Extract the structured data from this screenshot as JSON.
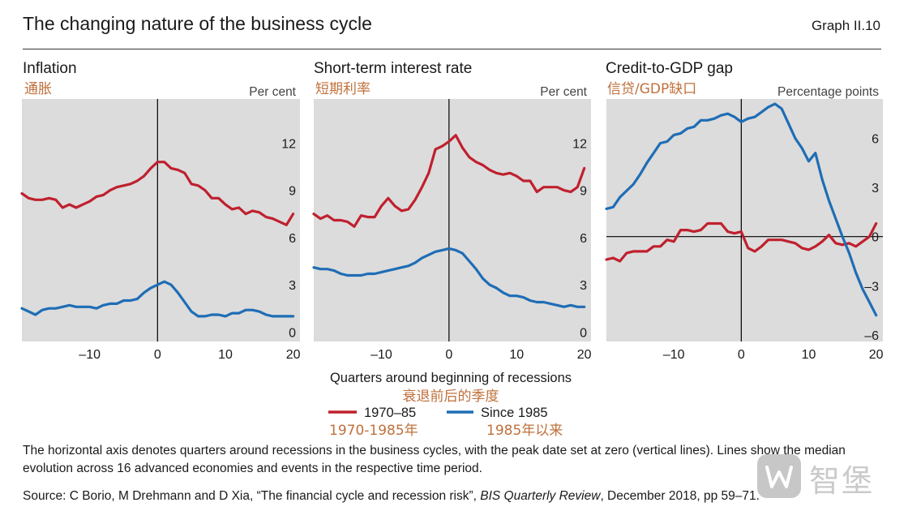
{
  "header": {
    "title": "The changing nature of the business cycle",
    "graph_number": "Graph II.10"
  },
  "x_axis_title": "Quarters around beginning of recessions",
  "x_axis_title_cn": "衰退前后的季度",
  "legend": {
    "items": [
      {
        "label": "1970–85",
        "label_cn": "1970-1985年",
        "color": "#c0202e"
      },
      {
        "label": "Since 1985",
        "label_cn": "1985年以来",
        "color": "#1f6db5"
      }
    ]
  },
  "footnote": "The horizontal axis denotes quarters around recessions in the business cycles, with the peak date set at zero (vertical lines). Lines show the median evolution across 16 advanced economies and events in the respective time period.",
  "source": {
    "prefix": "Source: C Borio, M Drehmann and D Xia, “The financial cycle and recession risk”, ",
    "publication": "BIS Quarterly Review",
    "suffix": ", December 2018, pp 59–71."
  },
  "watermark": {
    "text": "智堡",
    "icon": "zhibao-logo-icon"
  },
  "colors": {
    "red": "#c0202e",
    "blue": "#1f6db5",
    "panel_bg": "#dcdcdc",
    "cn_label": "#c0703c"
  },
  "chart_data": [
    {
      "type": "line",
      "title": "Inflation",
      "title_cn": "通胀",
      "unit": "Per cent",
      "xlim": [
        -20,
        21
      ],
      "ylim": [
        -0.6,
        14.8
      ],
      "xticks": [
        -10,
        0,
        10,
        20
      ],
      "yticks": [
        0,
        3,
        6,
        9,
        12
      ],
      "ytick_labels": [
        "0",
        "3",
        "6",
        "9",
        "12"
      ],
      "zero_line": false,
      "series": [
        {
          "name": "1970–85",
          "color": "#c0202e",
          "x": [
            -20,
            -19,
            -18,
            -17,
            -16,
            -15,
            -14,
            -13,
            -12,
            -11,
            -10,
            -9,
            -8,
            -7,
            -6,
            -5,
            -4,
            -3,
            -2,
            -1,
            0,
            1,
            2,
            3,
            4,
            5,
            6,
            7,
            8,
            9,
            10,
            11,
            12,
            13,
            14,
            15,
            16,
            17,
            18,
            19,
            20
          ],
          "y": [
            8.8,
            8.5,
            8.4,
            8.4,
            8.5,
            8.4,
            7.9,
            8.1,
            7.9,
            8.1,
            8.3,
            8.6,
            8.7,
            9.0,
            9.2,
            9.3,
            9.4,
            9.6,
            9.9,
            10.4,
            10.8,
            10.8,
            10.4,
            10.3,
            10.1,
            9.4,
            9.3,
            9.0,
            8.5,
            8.5,
            8.1,
            7.8,
            7.9,
            7.5,
            7.7,
            7.6,
            7.3,
            7.2,
            7.0,
            6.8,
            7.5
          ]
        },
        {
          "name": "Since 1985",
          "color": "#1f6db5",
          "x": [
            -20,
            -19,
            -18,
            -17,
            -16,
            -15,
            -14,
            -13,
            -12,
            -11,
            -10,
            -9,
            -8,
            -7,
            -6,
            -5,
            -4,
            -3,
            -2,
            -1,
            0,
            1,
            2,
            3,
            4,
            5,
            6,
            7,
            8,
            9,
            10,
            11,
            12,
            13,
            14,
            15,
            16,
            17,
            18,
            19,
            20
          ],
          "y": [
            1.5,
            1.3,
            1.1,
            1.4,
            1.5,
            1.5,
            1.6,
            1.7,
            1.6,
            1.6,
            1.6,
            1.5,
            1.7,
            1.8,
            1.8,
            2.0,
            2.0,
            2.1,
            2.5,
            2.8,
            3.0,
            3.2,
            3.0,
            2.5,
            1.9,
            1.3,
            1.0,
            1.0,
            1.1,
            1.1,
            1.0,
            1.2,
            1.2,
            1.4,
            1.4,
            1.3,
            1.1,
            1.0,
            1.0,
            1.0,
            1.0
          ]
        }
      ]
    },
    {
      "type": "line",
      "title": "Short-term interest rate",
      "title_cn": "短期利率",
      "unit": "Per cent",
      "xlim": [
        -20,
        21
      ],
      "ylim": [
        -0.6,
        14.8
      ],
      "xticks": [
        -10,
        0,
        10,
        20
      ],
      "yticks": [
        0,
        3,
        6,
        9,
        12
      ],
      "ytick_labels": [
        "0",
        "3",
        "6",
        "9",
        "12"
      ],
      "zero_line": false,
      "series": [
        {
          "name": "1970–85",
          "color": "#c0202e",
          "x": [
            -20,
            -19,
            -18,
            -17,
            -16,
            -15,
            -14,
            -13,
            -12,
            -11,
            -10,
            -9,
            -8,
            -7,
            -6,
            -5,
            -4,
            -3,
            -2,
            -1,
            0,
            1,
            2,
            3,
            4,
            5,
            6,
            7,
            8,
            9,
            10,
            11,
            12,
            13,
            14,
            15,
            16,
            17,
            18,
            19,
            20
          ],
          "y": [
            7.5,
            7.2,
            7.4,
            7.1,
            7.1,
            7.0,
            6.7,
            7.4,
            7.3,
            7.3,
            8.0,
            8.5,
            8.0,
            7.7,
            7.8,
            8.4,
            9.2,
            10.1,
            11.6,
            11.8,
            12.1,
            12.5,
            11.7,
            11.1,
            10.8,
            10.6,
            10.3,
            10.1,
            10.0,
            10.1,
            9.9,
            9.6,
            9.6,
            8.9,
            9.2,
            9.2,
            9.2,
            9.0,
            8.9,
            9.2,
            10.4
          ]
        },
        {
          "name": "Since 1985",
          "color": "#1f6db5",
          "x": [
            -20,
            -19,
            -18,
            -17,
            -16,
            -15,
            -14,
            -13,
            -12,
            -11,
            -10,
            -9,
            -8,
            -7,
            -6,
            -5,
            -4,
            -3,
            -2,
            -1,
            0,
            1,
            2,
            3,
            4,
            5,
            6,
            7,
            8,
            9,
            10,
            11,
            12,
            13,
            14,
            15,
            16,
            17,
            18,
            19,
            20
          ],
          "y": [
            4.1,
            4.0,
            4.0,
            3.9,
            3.7,
            3.6,
            3.6,
            3.6,
            3.7,
            3.7,
            3.8,
            3.9,
            4.0,
            4.1,
            4.2,
            4.4,
            4.7,
            4.9,
            5.1,
            5.2,
            5.3,
            5.2,
            5.0,
            4.5,
            4.0,
            3.4,
            3.0,
            2.8,
            2.5,
            2.3,
            2.3,
            2.2,
            2.0,
            1.9,
            1.9,
            1.8,
            1.7,
            1.6,
            1.7,
            1.6,
            1.6
          ]
        }
      ]
    },
    {
      "type": "line",
      "title": "Credit-to-GDP gap",
      "title_cn": "信贷/GDP缺口",
      "unit": "Percentage points",
      "xlim": [
        -20,
        21
      ],
      "ylim": [
        -6.4,
        8.4
      ],
      "xticks": [
        -10,
        0,
        10,
        20
      ],
      "yticks": [
        -6,
        -3,
        0,
        3,
        6
      ],
      "ytick_labels": [
        "–6",
        "–3",
        "0",
        "3",
        "6"
      ],
      "zero_line": true,
      "series": [
        {
          "name": "1970–85",
          "color": "#c0202e",
          "x": [
            -20,
            -19,
            -18,
            -17,
            -16,
            -15,
            -14,
            -13,
            -12,
            -11,
            -10,
            -9,
            -8,
            -7,
            -6,
            -5,
            -4,
            -3,
            -2,
            -1,
            0,
            1,
            2,
            3,
            4,
            5,
            6,
            7,
            8,
            9,
            10,
            11,
            12,
            13,
            14,
            15,
            16,
            17,
            18,
            19,
            20
          ],
          "y": [
            -1.4,
            -1.3,
            -1.5,
            -1.0,
            -0.9,
            -0.9,
            -0.9,
            -0.6,
            -0.6,
            -0.2,
            -0.3,
            0.4,
            0.4,
            0.3,
            0.4,
            0.8,
            0.8,
            0.8,
            0.3,
            0.2,
            0.3,
            -0.7,
            -0.9,
            -0.6,
            -0.2,
            -0.2,
            -0.2,
            -0.3,
            -0.4,
            -0.7,
            -0.8,
            -0.6,
            -0.3,
            0.1,
            -0.4,
            -0.5,
            -0.4,
            -0.6,
            -0.3,
            0.0,
            0.8
          ]
        },
        {
          "name": "Since 1985",
          "color": "#1f6db5",
          "x": [
            -20,
            -19,
            -18,
            -17,
            -16,
            -15,
            -14,
            -13,
            -12,
            -11,
            -10,
            -9,
            -8,
            -7,
            -6,
            -5,
            -4,
            -3,
            -2,
            -1,
            0,
            1,
            2,
            3,
            4,
            5,
            6,
            7,
            8,
            9,
            10,
            11,
            12,
            13,
            14,
            15,
            16,
            17,
            18,
            19,
            20
          ],
          "y": [
            1.7,
            1.8,
            2.4,
            2.8,
            3.2,
            3.8,
            4.5,
            5.1,
            5.7,
            5.8,
            6.2,
            6.3,
            6.6,
            6.7,
            7.1,
            7.1,
            7.2,
            7.4,
            7.5,
            7.3,
            7.0,
            7.2,
            7.3,
            7.6,
            7.9,
            8.1,
            7.8,
            6.9,
            6.0,
            5.4,
            4.6,
            5.1,
            3.5,
            2.2,
            1.1,
            0.0,
            -1.0,
            -2.2,
            -3.2,
            -4.0,
            -4.8
          ]
        }
      ]
    }
  ]
}
